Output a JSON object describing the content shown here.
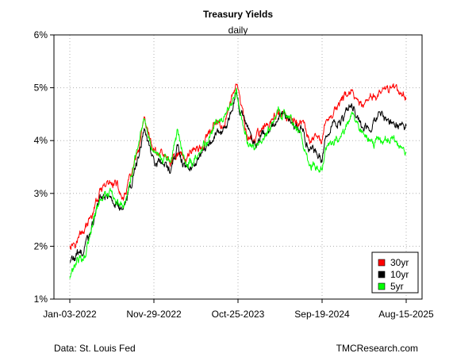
{
  "chart_data": {
    "type": "line",
    "title": "Treasury Yields",
    "subtitle": "daily",
    "xlabel": "",
    "ylabel": "",
    "xlim": [
      "2022-01-03",
      "2025-08-15"
    ],
    "ylim": [
      1,
      6
    ],
    "x_ticks": [
      "Jan-03-2022",
      "Nov-29-2022",
      "Oct-25-2023",
      "Sep-19-2024",
      "Aug-15-2025"
    ],
    "y_ticks": [
      "1%",
      "2%",
      "3%",
      "4%",
      "5%",
      "6%"
    ],
    "grid": true,
    "legend_position": "bottom-right",
    "source_left": "Data: St. Louis Fed",
    "source_right": "TMCResearch.com",
    "x": [
      "2022-01-03",
      "2022-02-01",
      "2022-03-01",
      "2022-04-01",
      "2022-05-01",
      "2022-06-01",
      "2022-07-01",
      "2022-08-01",
      "2022-09-01",
      "2022-10-01",
      "2022-10-21",
      "2022-11-29",
      "2023-01-01",
      "2023-02-01",
      "2023-03-01",
      "2023-04-01",
      "2023-05-01",
      "2023-06-01",
      "2023-07-01",
      "2023-08-01",
      "2023-09-01",
      "2023-10-19",
      "2023-11-01",
      "2023-12-01",
      "2024-01-01",
      "2024-02-01",
      "2024-03-01",
      "2024-04-01",
      "2024-05-01",
      "2024-06-01",
      "2024-07-01",
      "2024-08-01",
      "2024-09-19",
      "2024-10-01",
      "2024-11-01",
      "2024-12-01",
      "2025-01-13",
      "2025-02-01",
      "2025-03-01",
      "2025-04-01",
      "2025-05-01",
      "2025-06-01",
      "2025-07-01",
      "2025-08-15"
    ],
    "series": [
      {
        "name": "30yr",
        "color": "#ff0000",
        "values": [
          2.05,
          2.2,
          2.4,
          2.6,
          3.0,
          3.2,
          3.15,
          2.85,
          3.35,
          3.8,
          4.4,
          3.8,
          3.8,
          3.6,
          3.8,
          3.7,
          3.85,
          3.9,
          4.1,
          4.3,
          4.35,
          5.1,
          4.7,
          4.0,
          4.05,
          4.3,
          4.35,
          4.55,
          4.45,
          4.35,
          4.35,
          4.0,
          3.95,
          4.3,
          4.5,
          4.75,
          4.95,
          4.7,
          4.6,
          4.8,
          4.9,
          4.95,
          5.0,
          4.85
        ]
      },
      {
        "name": "10yr",
        "color": "#000000",
        "values": [
          1.7,
          1.8,
          1.95,
          2.4,
          2.9,
          3.0,
          2.9,
          2.7,
          3.2,
          3.75,
          4.25,
          3.6,
          3.5,
          3.45,
          3.95,
          3.4,
          3.5,
          3.7,
          3.8,
          4.1,
          4.2,
          4.95,
          4.6,
          4.2,
          3.9,
          4.1,
          4.25,
          4.5,
          4.5,
          4.3,
          4.3,
          3.85,
          3.65,
          4.0,
          4.3,
          4.35,
          4.75,
          4.5,
          4.25,
          4.2,
          4.45,
          4.4,
          4.35,
          4.3
        ]
      },
      {
        "name": "5yr",
        "color": "#00ff00",
        "values": [
          1.4,
          1.7,
          1.8,
          2.4,
          2.9,
          3.05,
          2.95,
          2.75,
          3.3,
          4.1,
          4.4,
          3.8,
          3.65,
          3.6,
          4.2,
          3.55,
          3.55,
          3.85,
          4.05,
          4.35,
          4.4,
          4.95,
          4.55,
          4.05,
          3.85,
          4.05,
          4.25,
          4.55,
          4.45,
          4.3,
          4.1,
          3.6,
          3.45,
          3.9,
          4.1,
          4.1,
          4.45,
          4.3,
          4.05,
          3.95,
          3.95,
          3.95,
          3.95,
          3.8
        ]
      }
    ]
  }
}
